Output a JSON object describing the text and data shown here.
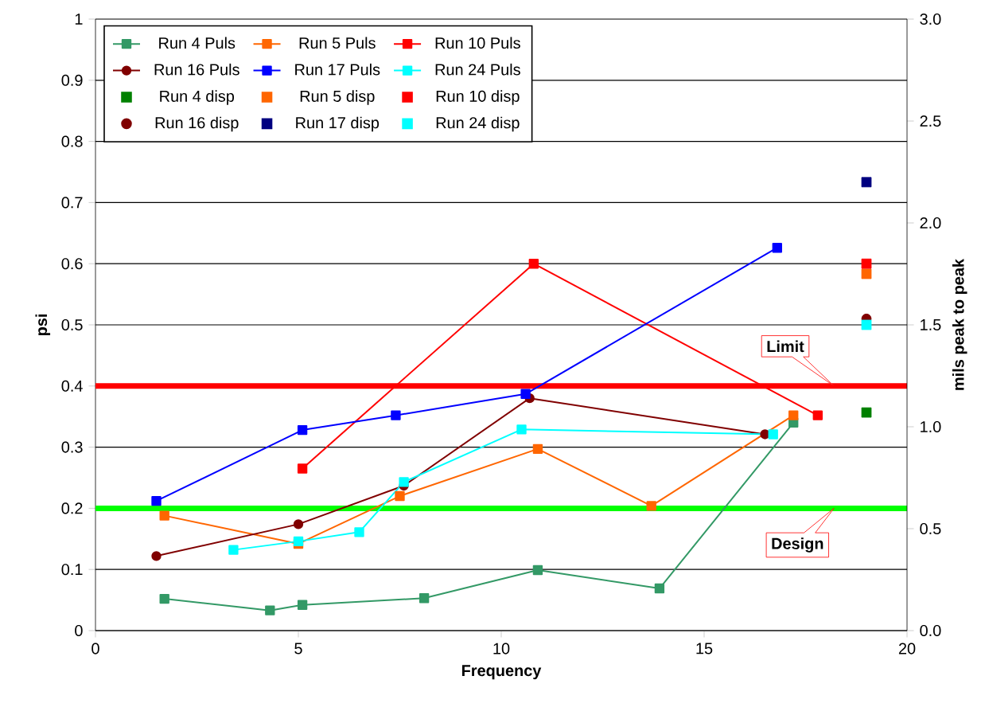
{
  "chart_data": {
    "type": "line",
    "xlabel": "Frequency",
    "ylabel": "psi",
    "y2label": "mils peak to peak",
    "xlim": [
      0,
      20
    ],
    "xticks": [
      0,
      5,
      10,
      15,
      20
    ],
    "ylim": [
      0,
      1
    ],
    "yticks": [
      0,
      0.1,
      0.2,
      0.3,
      0.4,
      0.5,
      0.6,
      0.7,
      0.8,
      0.9,
      1
    ],
    "y2lim": [
      0,
      3
    ],
    "y2ticks": [
      {
        "value": 0,
        "label": "0.0"
      },
      {
        "value": 0.5,
        "label": "0.5"
      },
      {
        "value": 1,
        "label": "1.0"
      },
      {
        "value": 1.5,
        "label": "1.5"
      },
      {
        "value": 2,
        "label": "2.0"
      },
      {
        "value": 2.5,
        "label": "2.5"
      },
      {
        "value": 3,
        "label": "3.0"
      }
    ],
    "grid": "y",
    "legend": "top left",
    "marker": "square",
    "series": [
      {
        "name": "Run 4 Puls",
        "color": "#339966",
        "x": [
          1.7,
          4.3,
          5.1,
          8.1,
          10.9,
          13.9,
          17.2
        ],
        "values": [
          0.052,
          0.033,
          0.042,
          0.053,
          0.099,
          0.069,
          0.34
        ]
      },
      {
        "name": "Run 5 Puls",
        "color": "#ff6600",
        "x": [
          1.7,
          5.0,
          7.5,
          10.9,
          13.7,
          17.2
        ],
        "values": [
          0.188,
          0.142,
          0.22,
          0.297,
          0.204,
          0.352
        ]
      },
      {
        "name": "Run 10 Puls",
        "color": "#ff0000",
        "x": [
          5.1,
          10.8,
          17.8
        ],
        "values": [
          0.265,
          0.6,
          0.352
        ]
      },
      {
        "name": "Run 16 Puls",
        "color": "#800000",
        "marker": "circle",
        "x": [
          1.5,
          5.0,
          7.6,
          10.7,
          16.5
        ],
        "values": [
          0.122,
          0.174,
          0.237,
          0.38,
          0.321
        ]
      },
      {
        "name": "Run 17 Puls",
        "color": "#0000ff",
        "x": [
          1.5,
          5.1,
          7.4,
          10.6,
          16.8
        ],
        "values": [
          0.212,
          0.328,
          0.352,
          0.387,
          0.626
        ]
      },
      {
        "name": "Run 24 Puls",
        "color": "#00ffff",
        "x": [
          3.4,
          5.0,
          6.5,
          7.6,
          10.5,
          16.7
        ],
        "values": [
          0.132,
          0.146,
          0.161,
          0.243,
          0.329,
          0.321
        ]
      },
      {
        "name": "Run 4 disp",
        "type": "scatter",
        "axis": "y2",
        "color": "#008000",
        "x": [
          19
        ],
        "values": [
          1.07
        ]
      },
      {
        "name": "Run 5 disp",
        "type": "scatter",
        "axis": "y2",
        "color": "#ff6600",
        "x": [
          19
        ],
        "values": [
          1.75
        ]
      },
      {
        "name": "Run 10 disp",
        "type": "scatter",
        "axis": "y2",
        "color": "#ff0000",
        "x": [
          19
        ],
        "values": [
          1.8
        ]
      },
      {
        "name": "Run 16 disp",
        "type": "scatter",
        "axis": "y2",
        "color": "#800000",
        "marker": "circle",
        "x": [
          19
        ],
        "values": [
          1.53
        ]
      },
      {
        "name": "Run 17 disp",
        "type": "scatter",
        "axis": "y2",
        "color": "#000080",
        "x": [
          19
        ],
        "values": [
          2.2
        ]
      },
      {
        "name": "Run 24 disp",
        "type": "scatter",
        "axis": "y2",
        "color": "#00ffff",
        "x": [
          19
        ],
        "values": [
          1.5
        ]
      }
    ],
    "ref_lines": [
      {
        "axis": "y",
        "value": 0.4,
        "label": "Limit",
        "color": "#ff0000"
      },
      {
        "axis": "y",
        "value": 0.2,
        "label": "Design",
        "color": "#00ff00"
      }
    ]
  }
}
